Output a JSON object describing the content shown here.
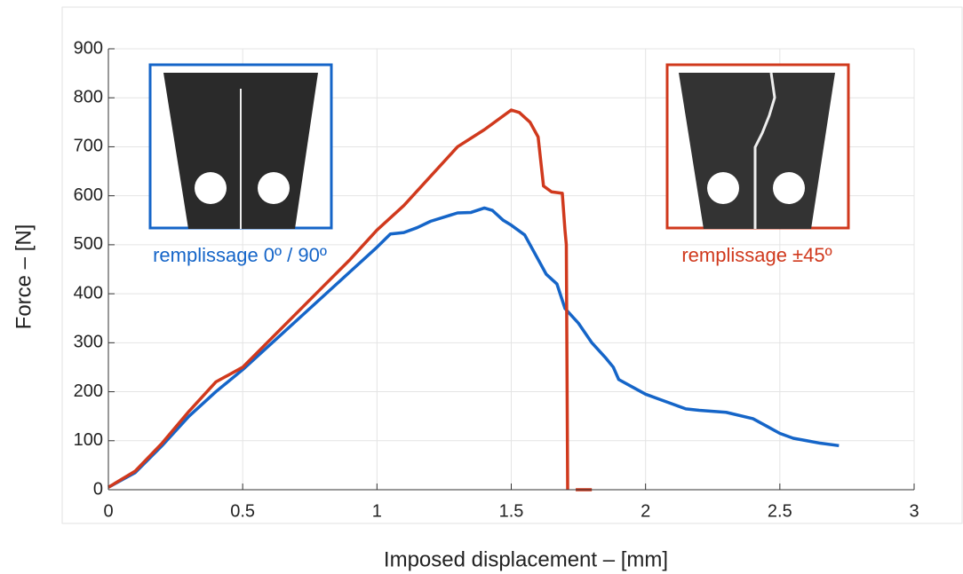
{
  "chart_data": {
    "type": "line",
    "x_label": "Imposed displacement – [mm]",
    "y_label": "Force – [N]",
    "series": [
      {
        "name": "remplissage 0º / 90º",
        "color": "#1565c8",
        "x": [
          0,
          0.1,
          0.2,
          0.3,
          0.4,
          0.5,
          0.6,
          0.7,
          0.8,
          0.9,
          1.0,
          1.05,
          1.1,
          1.15,
          1.2,
          1.3,
          1.35,
          1.4,
          1.43,
          1.47,
          1.5,
          1.55,
          1.6,
          1.63,
          1.67,
          1.7,
          1.75,
          1.8,
          1.85,
          1.88,
          1.9,
          1.95,
          2.0,
          2.05,
          2.1,
          2.15,
          2.2,
          2.3,
          2.4,
          2.45,
          2.5,
          2.55,
          2.6,
          2.65,
          2.72
        ],
        "values": [
          5,
          35,
          90,
          150,
          200,
          245,
          295,
          345,
          395,
          445,
          495,
          522,
          525,
          535,
          548,
          565,
          566,
          575,
          570,
          550,
          540,
          520,
          470,
          440,
          420,
          370,
          340,
          300,
          270,
          250,
          225,
          210,
          195,
          185,
          175,
          165,
          162,
          158,
          145,
          130,
          115,
          105,
          100,
          95,
          90
        ]
      },
      {
        "name": "remplissage ±45º",
        "color": "#d0391d",
        "x": [
          0,
          0.1,
          0.2,
          0.3,
          0.4,
          0.5,
          0.6,
          0.7,
          0.8,
          0.9,
          1.0,
          1.1,
          1.2,
          1.3,
          1.4,
          1.5,
          1.53,
          1.57,
          1.6,
          1.62,
          1.65,
          1.69,
          1.7,
          1.705,
          1.71,
          1.72,
          1.74,
          1.8
        ],
        "values": [
          5,
          38,
          95,
          160,
          220,
          250,
          305,
          360,
          415,
          470,
          530,
          580,
          640,
          700,
          735,
          775,
          770,
          750,
          720,
          620,
          608,
          605,
          530,
          500,
          0,
          null,
          0,
          0
        ]
      }
    ],
    "xlim": [
      0,
      3
    ],
    "xticks": [
      0,
      0.5,
      1,
      1.5,
      2,
      2.5,
      3
    ],
    "ylim": [
      0,
      900
    ],
    "yticks": [
      0,
      100,
      200,
      300,
      400,
      500,
      600,
      700,
      800,
      900
    ],
    "grid": true
  }
}
